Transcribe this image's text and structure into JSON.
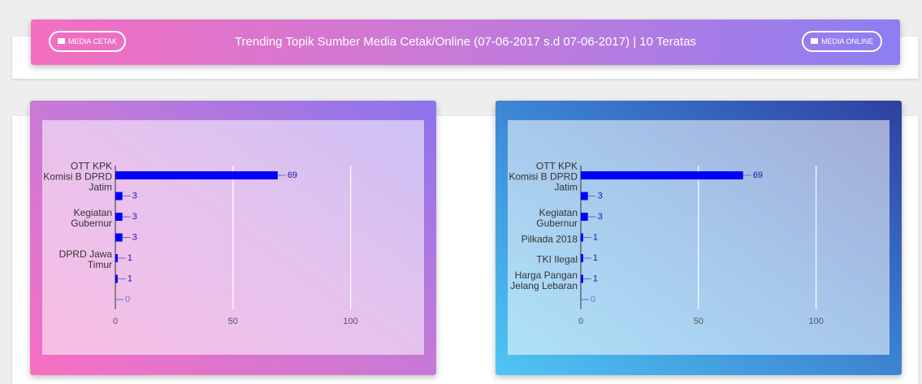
{
  "header": {
    "title": "Trending Topik Sumber Media Cetak/Online (07-06-2017 s.d 07-06-2017) | 10 Teratas",
    "left_button": "MEDIA CETAK",
    "right_button": "MEDIA ONLINE"
  },
  "chart_data": [
    {
      "type": "hbar",
      "categories": [
        "OTT KPK Komisi B DPRD Jatim",
        null,
        "Kegiatan Gubernur",
        null,
        "DPRD Jawa Timur",
        null,
        null
      ],
      "values": [
        69,
        3,
        3,
        3,
        1,
        1,
        0
      ],
      "color": "#0000ff",
      "xlim": [
        0,
        125
      ],
      "xticks": [
        0,
        50,
        100
      ],
      "grid": true
    },
    {
      "type": "hbar",
      "categories": [
        "OTT KPK Komisi B DPRD Jatim",
        null,
        "Kegiatan Gubernur",
        "Pilkada 2018",
        "TKI Ilegal",
        "Harga Pangan Jelang Lebaran",
        null
      ],
      "values": [
        69,
        3,
        3,
        1,
        1,
        1,
        0
      ],
      "color": "#0000ff",
      "xlim": [
        0,
        125
      ],
      "xticks": [
        0,
        50,
        100
      ],
      "grid": true
    }
  ]
}
